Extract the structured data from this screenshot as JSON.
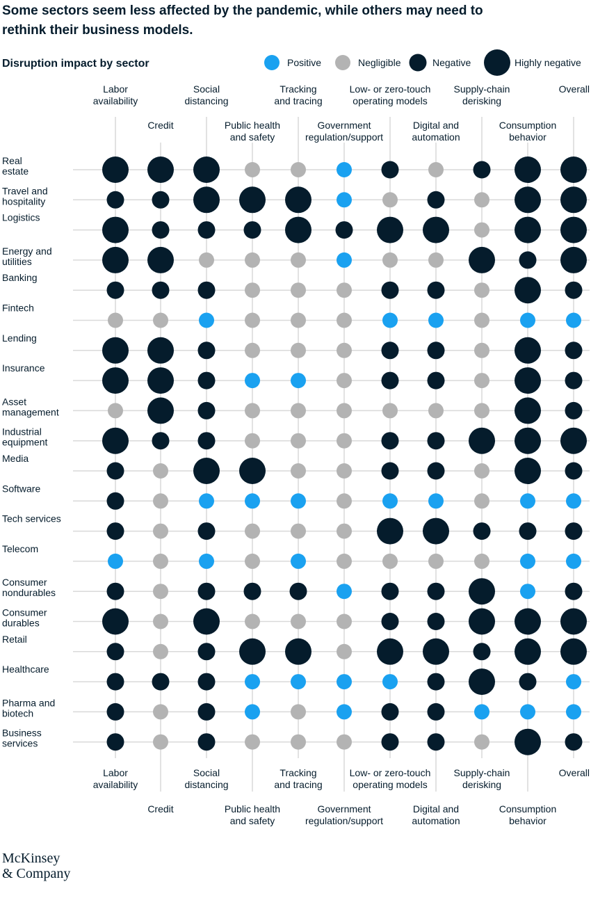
{
  "headline": {
    "line1": "Some sectors seem less affected by the pandemic, while others may need to",
    "line2": "rethink their business models."
  },
  "subtitle": "Disruption impact by sector",
  "brand": {
    "line1": "McKinsey",
    "line2": "& Company"
  },
  "colors": {
    "positive": "#1aa1f0",
    "negligible": "#b3b3b3",
    "negative": "#051c2c",
    "highly_negative": "#051c2c",
    "grid": "#d9d9d9",
    "text": "#051c2c"
  },
  "chart_data": {
    "type": "dot-matrix",
    "title": "Disruption impact by sector",
    "legend": [
      {
        "key": "P",
        "label": "Positive"
      },
      {
        "key": "N",
        "label": "Negligible"
      },
      {
        "key": "G",
        "label": "Negative"
      },
      {
        "key": "H",
        "label": "Highly negative"
      }
    ],
    "columns": [
      [
        "Labor",
        "availability"
      ],
      [
        "Credit"
      ],
      [
        "Social",
        "distancing"
      ],
      [
        "Public health",
        "and safety"
      ],
      [
        "Tracking",
        "and tracing"
      ],
      [
        "Government",
        "regulation/support"
      ],
      [
        "Low- or zero-touch",
        "operating models"
      ],
      [
        "Digital and",
        "automation"
      ],
      [
        "Supply-chain",
        "derisking"
      ],
      [
        "Consumption",
        "behavior"
      ],
      [
        "Overall"
      ]
    ],
    "rows": [
      {
        "sector": [
          "Real",
          "estate"
        ],
        "values": [
          "H",
          "H",
          "H",
          "N",
          "N",
          "P",
          "G",
          "N",
          "G",
          "H",
          "H"
        ]
      },
      {
        "sector": [
          "Travel and",
          "hospitality"
        ],
        "values": [
          "G",
          "G",
          "H",
          "H",
          "H",
          "P",
          "N",
          "G",
          "N",
          "H",
          "H"
        ]
      },
      {
        "sector": [
          "Logistics"
        ],
        "values": [
          "H",
          "G",
          "G",
          "G",
          "H",
          "G",
          "H",
          "H",
          "N",
          "H",
          "H"
        ]
      },
      {
        "sector": [
          "Energy and",
          "utilities"
        ],
        "values": [
          "H",
          "H",
          "N",
          "N",
          "N",
          "P",
          "N",
          "N",
          "H",
          "G",
          "H"
        ]
      },
      {
        "sector": [
          "Banking"
        ],
        "values": [
          "G",
          "G",
          "G",
          "N",
          "N",
          "N",
          "G",
          "G",
          "N",
          "H",
          "G"
        ]
      },
      {
        "sector": [
          "Fintech"
        ],
        "values": [
          "N",
          "N",
          "P",
          "N",
          "N",
          "N",
          "P",
          "P",
          "N",
          "P",
          "P"
        ]
      },
      {
        "sector": [
          "Lending"
        ],
        "values": [
          "H",
          "H",
          "G",
          "N",
          "N",
          "N",
          "G",
          "G",
          "N",
          "H",
          "G"
        ]
      },
      {
        "sector": [
          "Insurance"
        ],
        "values": [
          "H",
          "H",
          "G",
          "P",
          "P",
          "N",
          "G",
          "G",
          "N",
          "H",
          "G"
        ]
      },
      {
        "sector": [
          "Asset",
          "management"
        ],
        "values": [
          "N",
          "H",
          "G",
          "N",
          "N",
          "N",
          "N",
          "N",
          "N",
          "H",
          "G"
        ]
      },
      {
        "sector": [
          "Industrial",
          "equipment"
        ],
        "values": [
          "H",
          "G",
          "G",
          "N",
          "N",
          "N",
          "G",
          "G",
          "H",
          "H",
          "H"
        ]
      },
      {
        "sector": [
          "Media"
        ],
        "values": [
          "G",
          "N",
          "H",
          "H",
          "N",
          "N",
          "G",
          "G",
          "N",
          "H",
          "G"
        ]
      },
      {
        "sector": [
          "Software"
        ],
        "values": [
          "G",
          "N",
          "P",
          "P",
          "P",
          "N",
          "P",
          "P",
          "N",
          "P",
          "P"
        ]
      },
      {
        "sector": [
          "Tech services"
        ],
        "values": [
          "G",
          "N",
          "G",
          "N",
          "N",
          "N",
          "H",
          "H",
          "G",
          "G",
          "G"
        ]
      },
      {
        "sector": [
          "Telecom"
        ],
        "values": [
          "P",
          "N",
          "P",
          "N",
          "P",
          "N",
          "N",
          "N",
          "N",
          "P",
          "P"
        ]
      },
      {
        "sector": [
          "Consumer",
          "nondurables"
        ],
        "values": [
          "G",
          "N",
          "G",
          "G",
          "G",
          "P",
          "G",
          "G",
          "H",
          "P",
          "G"
        ]
      },
      {
        "sector": [
          "Consumer",
          "durables"
        ],
        "values": [
          "H",
          "N",
          "H",
          "N",
          "N",
          "N",
          "G",
          "G",
          "H",
          "H",
          "H"
        ]
      },
      {
        "sector": [
          "Retail"
        ],
        "values": [
          "G",
          "N",
          "G",
          "H",
          "H",
          "N",
          "H",
          "H",
          "G",
          "H",
          "H"
        ]
      },
      {
        "sector": [
          "Healthcare"
        ],
        "values": [
          "G",
          "G",
          "G",
          "P",
          "P",
          "P",
          "P",
          "G",
          "H",
          "G",
          "P"
        ]
      },
      {
        "sector": [
          "Pharma and",
          "biotech"
        ],
        "values": [
          "G",
          "N",
          "G",
          "P",
          "N",
          "P",
          "G",
          "G",
          "P",
          "P",
          "P"
        ]
      },
      {
        "sector": [
          "Business",
          "services"
        ],
        "values": [
          "G",
          "N",
          "G",
          "N",
          "N",
          "N",
          "G",
          "G",
          "N",
          "H",
          "G"
        ]
      }
    ]
  }
}
